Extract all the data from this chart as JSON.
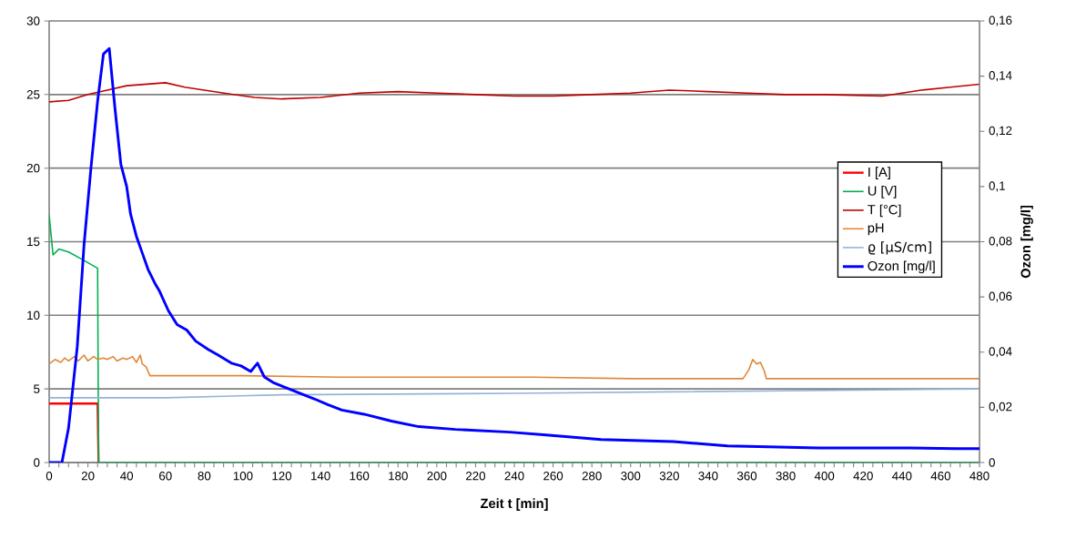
{
  "chart_data": {
    "type": "line",
    "xlabel": "Zeit t [min]",
    "y2label": "Ozon [mg/l]",
    "xlim": [
      0,
      480
    ],
    "xticks": [
      0,
      20,
      40,
      60,
      80,
      100,
      120,
      140,
      160,
      180,
      200,
      220,
      240,
      260,
      280,
      300,
      320,
      340,
      360,
      380,
      400,
      420,
      440,
      460,
      480
    ],
    "ylim": [
      0,
      30
    ],
    "yticks": [
      0,
      5,
      10,
      15,
      20,
      25,
      30
    ],
    "y2lim": [
      0,
      0.16
    ],
    "y2ticks": [
      0,
      {
        "value": 0.02,
        "label": "0,02"
      },
      {
        "value": 0.04,
        "label": "0,04"
      },
      {
        "value": 0.06,
        "label": "0,06"
      },
      {
        "value": 0.08,
        "label": "0,08"
      },
      {
        "value": 0.1,
        "label": "0,1"
      },
      {
        "value": 0.12,
        "label": "0,12"
      },
      {
        "value": 0.14,
        "label": "0,14"
      },
      {
        "value": 0.16,
        "label": "0,16"
      }
    ],
    "grid": "y",
    "legend": "right",
    "series": [
      {
        "name": "I [A]",
        "color": "#ff0000",
        "x": [
          0,
          25,
          25.5
        ],
        "values": [
          4.0,
          4.0,
          0
        ]
      },
      {
        "name": "U [V]",
        "color": "#00b050",
        "x": [
          0,
          2,
          5,
          10,
          17,
          25,
          25.5,
          480
        ],
        "values": [
          16.8,
          14.1,
          14.5,
          14.3,
          13.8,
          13.2,
          0,
          0
        ]
      },
      {
        "name": "T [°C]",
        "color": "#c00000",
        "x": [
          0,
          10,
          20,
          30,
          40,
          50,
          60,
          70,
          80,
          95,
          106,
          120,
          140,
          160,
          180,
          200,
          220,
          240,
          260,
          280,
          300,
          320,
          340,
          360,
          380,
          400,
          430,
          450,
          465,
          480
        ],
        "values": [
          24.5,
          24.6,
          25.0,
          25.3,
          25.6,
          25.7,
          25.8,
          25.5,
          25.3,
          25.0,
          24.8,
          24.7,
          24.8,
          25.1,
          25.2,
          25.1,
          25.0,
          24.9,
          24.9,
          25.0,
          25.1,
          25.3,
          25.2,
          25.1,
          25.0,
          25.0,
          24.9,
          25.3,
          25.5,
          25.7
        ]
      },
      {
        "name": "pH",
        "color": "#e0883a",
        "x": [
          0,
          3,
          6,
          8,
          10,
          13,
          15,
          18,
          20,
          23,
          25,
          28,
          30,
          33,
          35,
          38,
          40,
          43,
          45,
          47,
          48,
          50,
          52,
          100,
          150,
          200,
          250,
          300,
          358,
          361,
          363,
          365,
          367,
          369,
          370,
          480
        ],
        "values": [
          6.7,
          7.0,
          6.8,
          7.1,
          6.9,
          7.2,
          6.9,
          7.3,
          6.9,
          7.2,
          7.0,
          7.1,
          7.0,
          7.2,
          6.9,
          7.1,
          7.0,
          7.2,
          6.8,
          7.3,
          6.7,
          6.5,
          5.9,
          5.9,
          5.8,
          5.8,
          5.8,
          5.7,
          5.7,
          6.3,
          7.0,
          6.7,
          6.8,
          6.2,
          5.7,
          5.7
        ]
      },
      {
        "name": "ϱ [µS/cm]",
        "color": "#95b3d7",
        "x": [
          0,
          60,
          120,
          240,
          360,
          480
        ],
        "values": [
          4.4,
          4.4,
          4.6,
          4.7,
          4.85,
          5.0
        ]
      },
      {
        "name": "Ozon [mg/l]",
        "color": "#0000ff",
        "axis": "y2",
        "x": [
          0,
          6.6,
          10,
          14.5,
          18,
          21.6,
          25,
          28,
          31,
          34,
          37,
          40,
          42,
          45,
          48,
          51,
          54.5,
          57,
          61.5,
          66,
          71,
          75.6,
          82,
          87,
          94,
          99,
          104,
          107.5,
          111,
          115.5,
          122.5,
          129.6,
          137,
          143.7,
          151,
          162.5,
          176.6,
          190.7,
          209.5,
          237.7,
          256.5,
          284.7,
          322,
          350,
          397,
          444,
          467.8,
          480
        ],
        "values": [
          0,
          0,
          0.0125,
          0.042,
          0.079,
          0.107,
          0.131,
          0.148,
          0.15,
          0.128,
          0.108,
          0.1,
          0.09,
          0.082,
          0.076,
          0.07,
          0.065,
          0.062,
          0.055,
          0.05,
          0.048,
          0.044,
          0.041,
          0.039,
          0.036,
          0.035,
          0.033,
          0.036,
          0.031,
          0.029,
          0.027,
          0.025,
          0.023,
          0.021,
          0.019,
          0.0175,
          0.015,
          0.013,
          0.012,
          0.011,
          0.01,
          0.0083,
          0.0076,
          0.006,
          0.0053,
          0.0053,
          0.005,
          0.005
        ]
      }
    ]
  }
}
